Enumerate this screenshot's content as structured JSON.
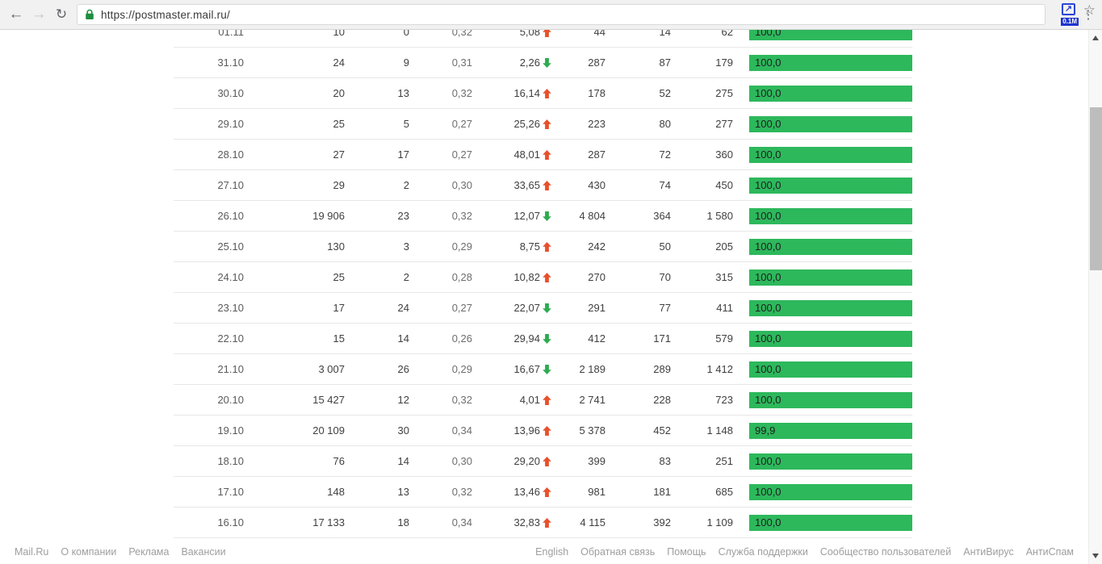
{
  "browser": {
    "url": "https://postmaster.mail.ru/",
    "extension_badge": "0.1M"
  },
  "colors": {
    "bar": "#2db85c",
    "trend_up": "#e8502a",
    "trend_down": "#2cab4f",
    "lock": "#1e8e3e"
  },
  "table": {
    "rows": [
      {
        "date": "01.11",
        "v1": "10",
        "v2": "0",
        "v3": "0,32",
        "change": "5,08",
        "trend": "up",
        "v4": "44",
        "v5": "14",
        "v6": "62",
        "bar_label": "100,0",
        "bar_pct": 100
      },
      {
        "date": "31.10",
        "v1": "24",
        "v2": "9",
        "v3": "0,31",
        "change": "2,26",
        "trend": "down",
        "v4": "287",
        "v5": "87",
        "v6": "179",
        "bar_label": "100,0",
        "bar_pct": 100
      },
      {
        "date": "30.10",
        "v1": "20",
        "v2": "13",
        "v3": "0,32",
        "change": "16,14",
        "trend": "up",
        "v4": "178",
        "v5": "52",
        "v6": "275",
        "bar_label": "100,0",
        "bar_pct": 100
      },
      {
        "date": "29.10",
        "v1": "25",
        "v2": "5",
        "v3": "0,27",
        "change": "25,26",
        "trend": "up",
        "v4": "223",
        "v5": "80",
        "v6": "277",
        "bar_label": "100,0",
        "bar_pct": 100
      },
      {
        "date": "28.10",
        "v1": "27",
        "v2": "17",
        "v3": "0,27",
        "change": "48,01",
        "trend": "up",
        "v4": "287",
        "v5": "72",
        "v6": "360",
        "bar_label": "100,0",
        "bar_pct": 100
      },
      {
        "date": "27.10",
        "v1": "29",
        "v2": "2",
        "v3": "0,30",
        "change": "33,65",
        "trend": "up",
        "v4": "430",
        "v5": "74",
        "v6": "450",
        "bar_label": "100,0",
        "bar_pct": 100
      },
      {
        "date": "26.10",
        "v1": "19 906",
        "v2": "23",
        "v3": "0,32",
        "change": "12,07",
        "trend": "down",
        "v4": "4 804",
        "v5": "364",
        "v6": "1 580",
        "bar_label": "100,0",
        "bar_pct": 100
      },
      {
        "date": "25.10",
        "v1": "130",
        "v2": "3",
        "v3": "0,29",
        "change": "8,75",
        "trend": "up",
        "v4": "242",
        "v5": "50",
        "v6": "205",
        "bar_label": "100,0",
        "bar_pct": 100
      },
      {
        "date": "24.10",
        "v1": "25",
        "v2": "2",
        "v3": "0,28",
        "change": "10,82",
        "trend": "up",
        "v4": "270",
        "v5": "70",
        "v6": "315",
        "bar_label": "100,0",
        "bar_pct": 100
      },
      {
        "date": "23.10",
        "v1": "17",
        "v2": "24",
        "v3": "0,27",
        "change": "22,07",
        "trend": "down",
        "v4": "291",
        "v5": "77",
        "v6": "411",
        "bar_label": "100,0",
        "bar_pct": 100
      },
      {
        "date": "22.10",
        "v1": "15",
        "v2": "14",
        "v3": "0,26",
        "change": "29,94",
        "trend": "down",
        "v4": "412",
        "v5": "171",
        "v6": "579",
        "bar_label": "100,0",
        "bar_pct": 100
      },
      {
        "date": "21.10",
        "v1": "3 007",
        "v2": "26",
        "v3": "0,29",
        "change": "16,67",
        "trend": "down",
        "v4": "2 189",
        "v5": "289",
        "v6": "1 412",
        "bar_label": "100,0",
        "bar_pct": 100
      },
      {
        "date": "20.10",
        "v1": "15 427",
        "v2": "12",
        "v3": "0,32",
        "change": "4,01",
        "trend": "up",
        "v4": "2 741",
        "v5": "228",
        "v6": "723",
        "bar_label": "100,0",
        "bar_pct": 100
      },
      {
        "date": "19.10",
        "v1": "20 109",
        "v2": "30",
        "v3": "0,34",
        "change": "13,96",
        "trend": "up",
        "v4": "5 378",
        "v5": "452",
        "v6": "1 148",
        "bar_label": "99,9",
        "bar_pct": 99.9
      },
      {
        "date": "18.10",
        "v1": "76",
        "v2": "14",
        "v3": "0,30",
        "change": "29,20",
        "trend": "up",
        "v4": "399",
        "v5": "83",
        "v6": "251",
        "bar_label": "100,0",
        "bar_pct": 100
      },
      {
        "date": "17.10",
        "v1": "148",
        "v2": "13",
        "v3": "0,32",
        "change": "13,46",
        "trend": "up",
        "v4": "981",
        "v5": "181",
        "v6": "685",
        "bar_label": "100,0",
        "bar_pct": 100
      },
      {
        "date": "16.10",
        "v1": "17 133",
        "v2": "18",
        "v3": "0,34",
        "change": "32,83",
        "trend": "up",
        "v4": "4 115",
        "v5": "392",
        "v6": "1 109",
        "bar_label": "100,0",
        "bar_pct": 100
      }
    ]
  },
  "footer": {
    "left_links": [
      "Mail.Ru",
      "О компании",
      "Реклама",
      "Вакансии"
    ],
    "right_links": [
      "English",
      "Обратная связь",
      "Помощь",
      "Служба поддержки",
      "Сообщество пользователей",
      "АнтиВирус",
      "АнтиСпам"
    ]
  }
}
